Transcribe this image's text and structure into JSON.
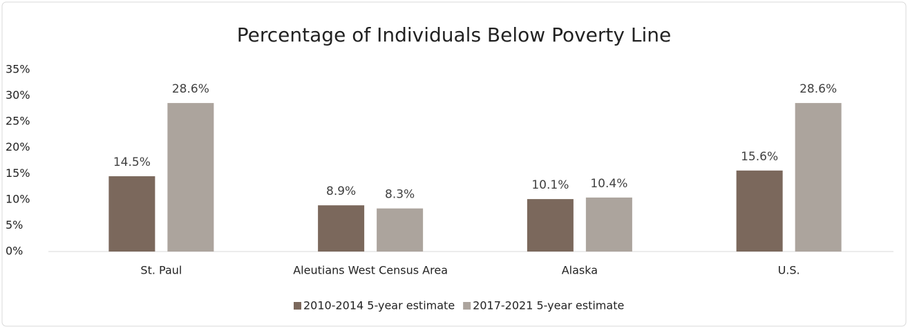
{
  "chart_data": {
    "type": "bar",
    "title": "Percentage of Individuals Below Poverty Line",
    "categories": [
      "St. Paul",
      "Aleutians West Census Area",
      "Alaska",
      "U.S."
    ],
    "series": [
      {
        "name": "2010-2014 5-year estimate",
        "color": "#7b685c",
        "values": [
          14.5,
          8.9,
          10.1,
          15.6
        ],
        "value_labels": [
          "14.5%",
          "8.9%",
          "10.1%",
          "15.6%"
        ]
      },
      {
        "name": "2017-2021 5-year estimate",
        "color": "#aca49d",
        "values": [
          28.6,
          8.3,
          10.4,
          28.6
        ],
        "value_labels": [
          "28.6%",
          "8.3%",
          "10.4%",
          "28.6%"
        ]
      }
    ],
    "ylim": [
      0,
      35
    ],
    "yticks": [
      {
        "value": 0,
        "label": "0%"
      },
      {
        "value": 5,
        "label": "5%"
      },
      {
        "value": 10,
        "label": "10%"
      },
      {
        "value": 15,
        "label": "15%"
      },
      {
        "value": 20,
        "label": "20%"
      },
      {
        "value": 25,
        "label": "25%"
      },
      {
        "value": 30,
        "label": "30%"
      },
      {
        "value": 35,
        "label": "35%"
      }
    ],
    "legend": "bottom"
  }
}
